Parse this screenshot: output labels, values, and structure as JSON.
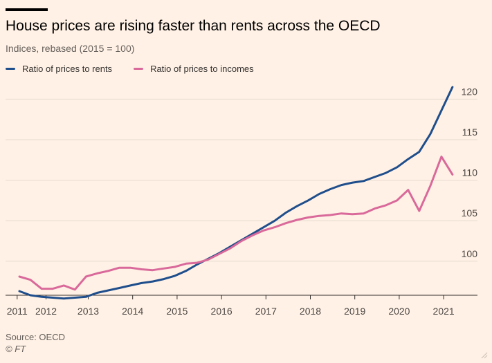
{
  "title": "House prices are rising faster than rents across the OECD",
  "subtitle": "Indices, rebased (2015 = 100)",
  "source": "Source: OECD",
  "credit": "© FT",
  "colors": {
    "series1": "#1f4e8c",
    "series2": "#d9699a",
    "grid": "#e6d9ce",
    "axis": "#33302e",
    "background": "#fff1e5"
  },
  "chart_data": {
    "type": "line",
    "title": "House prices are rising faster than rents across the OECD",
    "subtitle": "Indices, rebased (2015 = 100)",
    "x_ticks": [
      "2011",
      "2012",
      "2013",
      "2014",
      "2015",
      "2016",
      "2017",
      "2018",
      "2019",
      "2020",
      "2021"
    ],
    "y_ticks": [
      100,
      105,
      110,
      115,
      120
    ],
    "xlim": [
      2011,
      2021
    ],
    "ylim": [
      95.8,
      122
    ],
    "grid": "horizontal",
    "legend_position": "top-left",
    "series": [
      {
        "name": "Ratio of prices to rents",
        "color": "#1f4e8c",
        "points": [
          [
            2011.0,
            96.3
          ],
          [
            2011.25,
            95.8
          ],
          [
            2011.5,
            95.6
          ],
          [
            2011.75,
            95.5
          ],
          [
            2012.0,
            95.4
          ],
          [
            2012.25,
            95.5
          ],
          [
            2012.5,
            95.6
          ],
          [
            2012.75,
            96.1
          ],
          [
            2013.0,
            96.4
          ],
          [
            2013.25,
            96.7
          ],
          [
            2013.5,
            97.0
          ],
          [
            2013.75,
            97.3
          ],
          [
            2014.0,
            97.5
          ],
          [
            2014.25,
            97.8
          ],
          [
            2014.5,
            98.2
          ],
          [
            2014.75,
            98.8
          ],
          [
            2015.0,
            99.6
          ],
          [
            2015.25,
            100.3
          ],
          [
            2015.5,
            101.0
          ],
          [
            2015.75,
            101.8
          ],
          [
            2016.0,
            102.6
          ],
          [
            2016.25,
            103.4
          ],
          [
            2016.5,
            104.2
          ],
          [
            2016.75,
            105.0
          ],
          [
            2017.0,
            106.0
          ],
          [
            2017.25,
            106.8
          ],
          [
            2017.5,
            107.5
          ],
          [
            2017.75,
            108.3
          ],
          [
            2018.0,
            108.9
          ],
          [
            2018.25,
            109.4
          ],
          [
            2018.5,
            109.7
          ],
          [
            2018.75,
            109.9
          ],
          [
            2019.0,
            110.4
          ],
          [
            2019.25,
            110.9
          ],
          [
            2019.5,
            111.6
          ],
          [
            2019.75,
            112.6
          ],
          [
            2020.0,
            113.5
          ],
          [
            2020.25,
            115.7
          ],
          [
            2020.5,
            118.6
          ],
          [
            2020.75,
            121.5
          ]
        ]
      },
      {
        "name": "Ratio of prices to incomes",
        "color": "#d9699a",
        "points": [
          [
            2011.0,
            98.1
          ],
          [
            2011.25,
            97.7
          ],
          [
            2011.5,
            96.6
          ],
          [
            2011.75,
            96.6
          ],
          [
            2012.0,
            97.0
          ],
          [
            2012.25,
            96.5
          ],
          [
            2012.5,
            98.1
          ],
          [
            2012.75,
            98.5
          ],
          [
            2013.0,
            98.8
          ],
          [
            2013.25,
            99.2
          ],
          [
            2013.5,
            99.2
          ],
          [
            2013.75,
            99.0
          ],
          [
            2014.0,
            98.9
          ],
          [
            2014.25,
            99.1
          ],
          [
            2014.5,
            99.3
          ],
          [
            2014.75,
            99.7
          ],
          [
            2015.0,
            99.8
          ],
          [
            2015.25,
            100.2
          ],
          [
            2015.5,
            100.9
          ],
          [
            2015.75,
            101.6
          ],
          [
            2016.0,
            102.5
          ],
          [
            2016.25,
            103.2
          ],
          [
            2016.5,
            103.8
          ],
          [
            2016.75,
            104.2
          ],
          [
            2017.0,
            104.7
          ],
          [
            2017.25,
            105.1
          ],
          [
            2017.5,
            105.4
          ],
          [
            2017.75,
            105.6
          ],
          [
            2018.0,
            105.7
          ],
          [
            2018.25,
            105.9
          ],
          [
            2018.5,
            105.8
          ],
          [
            2018.75,
            105.9
          ],
          [
            2019.0,
            106.5
          ],
          [
            2019.25,
            106.9
          ],
          [
            2019.5,
            107.5
          ],
          [
            2019.75,
            108.8
          ],
          [
            2020.0,
            106.2
          ],
          [
            2020.25,
            109.3
          ],
          [
            2020.5,
            112.9
          ],
          [
            2020.75,
            110.7
          ]
        ]
      }
    ],
    "x_tick_positions": [
      2010.95,
      2011.6,
      2012.55,
      2013.55,
      2014.55,
      2015.55,
      2016.55,
      2017.55,
      2018.55,
      2019.55,
      2020.55
    ]
  }
}
